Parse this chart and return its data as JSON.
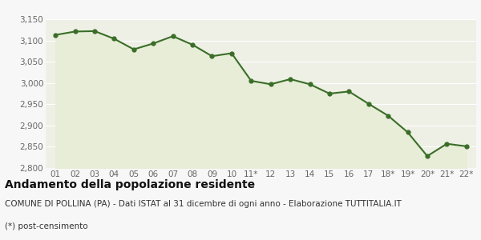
{
  "x_labels": [
    "01",
    "02",
    "03",
    "04",
    "05",
    "06",
    "07",
    "08",
    "09",
    "10",
    "11*",
    "12",
    "13",
    "14",
    "15",
    "16",
    "17",
    "18*",
    "19*",
    "20*",
    "21*",
    "22*"
  ],
  "y_values": [
    3113,
    3121,
    3122,
    3104,
    3079,
    3093,
    3110,
    3090,
    3063,
    3070,
    3005,
    2997,
    3009,
    2997,
    2975,
    2980,
    2951,
    2923,
    2884,
    2828,
    2857,
    2851
  ],
  "line_color": "#3a6e28",
  "fill_color": "#e8edd8",
  "marker": "o",
  "marker_size": 3.5,
  "line_width": 1.5,
  "ylim": [
    2800,
    3150
  ],
  "yticks": [
    2800,
    2850,
    2900,
    2950,
    3000,
    3050,
    3100,
    3150
  ],
  "bg_color": "#f7f7f7",
  "plot_bg_color": "#eef0e5",
  "grid_color": "#ffffff",
  "title": "Andamento della popolazione residente",
  "subtitle": "COMUNE DI POLLINA (PA) - Dati ISTAT al 31 dicembre di ogni anno - Elaborazione TUTTITALIA.IT",
  "footnote": "(*) post-censimento",
  "title_fontsize": 10,
  "subtitle_fontsize": 7.5,
  "footnote_fontsize": 7.5,
  "tick_fontsize": 7.5,
  "title_color": "#111111",
  "subtitle_color": "#333333",
  "footnote_color": "#333333"
}
